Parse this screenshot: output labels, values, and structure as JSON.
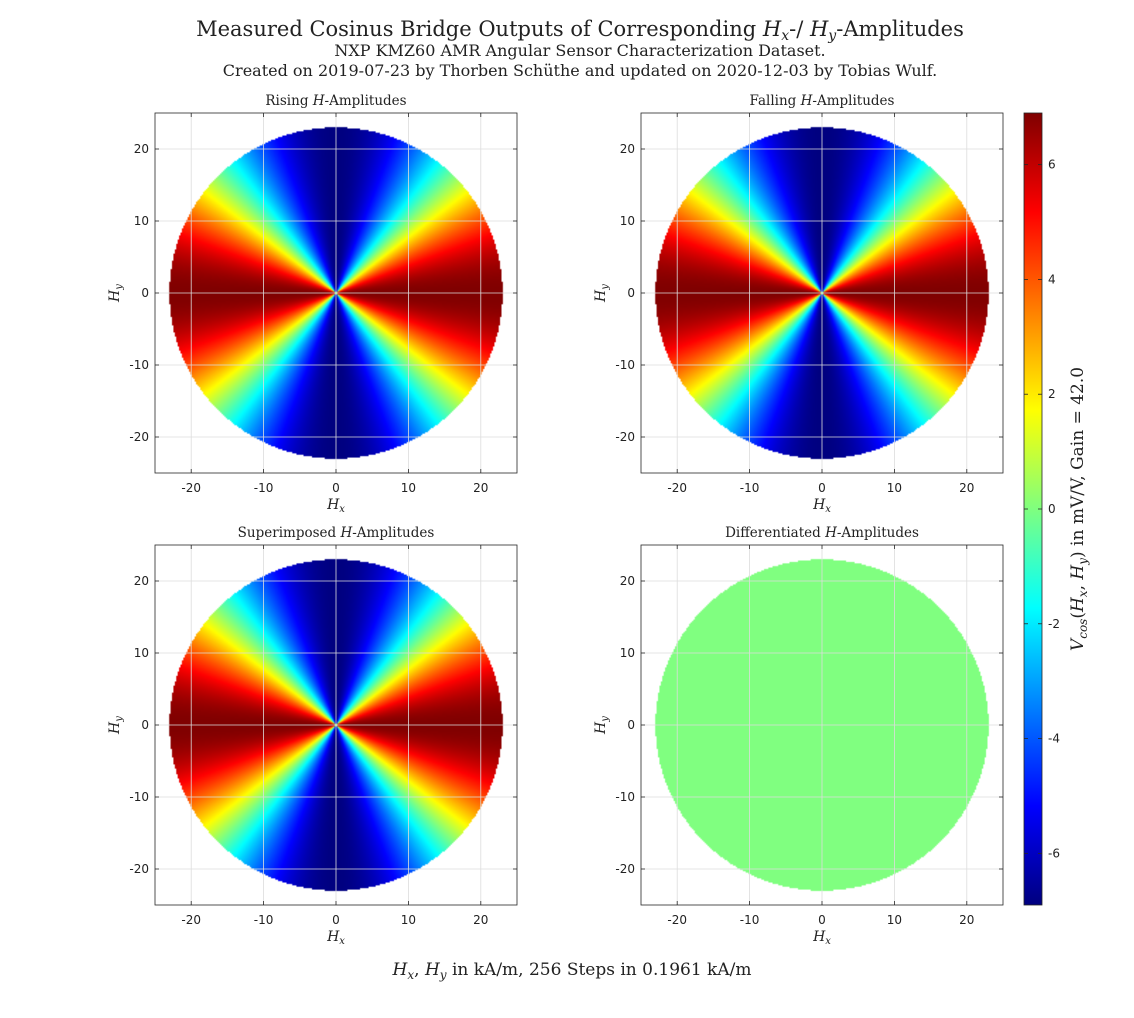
{
  "figure": {
    "title_prefix": "Measured Cosinus Bridge Outputs of Corresponding ",
    "title_hx": "H",
    "title_hx_sub": "x",
    "title_mid": "-/ ",
    "title_hy": "H",
    "title_hy_sub": "y",
    "title_suffix": "-Amplitudes",
    "subtitle_1": "NXP KMZ60 AMR Angular Sensor Characterization Dataset.",
    "subtitle_2": "Created on 2019-07-23 by Thorben Schüthe and updated on 2020-12-03 by Tobias Wulf.",
    "bottom_label": "Hx, Hy in kA/m, 256 Steps in 0.1961 kA/m",
    "colorbar_label": "Vcos(Hx, Hy) in mV/V, Gain = 42.0"
  },
  "chart_data": [
    {
      "type": "heatmap",
      "title": "Rising H-Amplitudes",
      "xlabel": "Hx",
      "ylabel": "Hy",
      "xlim": [
        -25,
        25
      ],
      "ylim": [
        -25,
        25
      ],
      "xticks": [
        -20,
        -10,
        0,
        10,
        20
      ],
      "yticks": [
        -20,
        -10,
        0,
        10,
        20
      ],
      "grid": true,
      "field_radius": 23,
      "function": "cos(2*atan2(Hy,Hx))",
      "peak": 6.9
    },
    {
      "type": "heatmap",
      "title": "Falling H-Amplitudes",
      "xlabel": "Hx",
      "ylabel": "Hy",
      "xlim": [
        -25,
        25
      ],
      "ylim": [
        -25,
        25
      ],
      "xticks": [
        -20,
        -10,
        0,
        10,
        20
      ],
      "yticks": [
        -20,
        -10,
        0,
        10,
        20
      ],
      "grid": true,
      "field_radius": 23,
      "function": "cos(2*atan2(Hy,Hx))",
      "peak": 6.9
    },
    {
      "type": "heatmap",
      "title": "Superimposed H-Amplitudes",
      "xlabel": "Hx",
      "ylabel": "Hy",
      "xlim": [
        -25,
        25
      ],
      "ylim": [
        -25,
        25
      ],
      "xticks": [
        -20,
        -10,
        0,
        10,
        20
      ],
      "yticks": [
        -20,
        -10,
        0,
        10,
        20
      ],
      "grid": true,
      "field_radius": 23,
      "function": "cos(2*atan2(Hy,Hx))",
      "peak": 6.9
    },
    {
      "type": "heatmap",
      "title": "Differentiated H-Amplitudes",
      "xlabel": "Hx",
      "ylabel": "Hy",
      "xlim": [
        -25,
        25
      ],
      "ylim": [
        -25,
        25
      ],
      "xticks": [
        -20,
        -10,
        0,
        10,
        20
      ],
      "yticks": [
        -20,
        -10,
        0,
        10,
        20
      ],
      "grid": true,
      "field_radius": 23,
      "function": "constant",
      "value": 0
    }
  ],
  "colorbar": {
    "colormap": "jet",
    "clim": [
      -6.9,
      6.9
    ],
    "ticks": [
      -6,
      -4,
      -2,
      0,
      2,
      4,
      6
    ]
  }
}
